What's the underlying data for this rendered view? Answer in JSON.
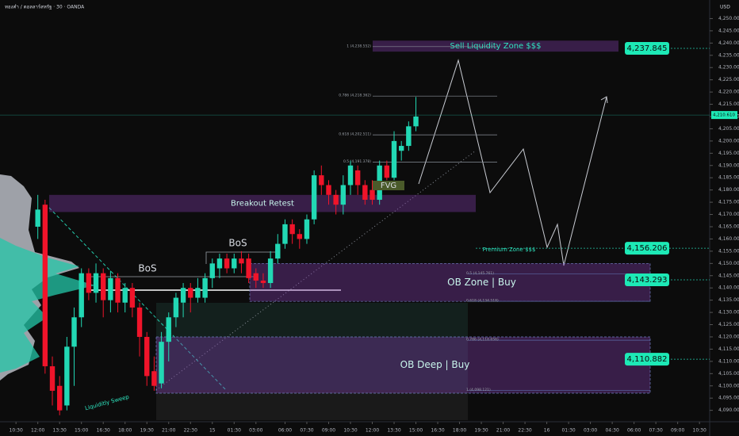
{
  "header": {
    "symbol": "ทองคำ / ดอลลาร์สหรัฐ · 30 · OANDA",
    "currency": "USD"
  },
  "chart_data": {
    "type": "candlestick",
    "up_color": "#22d8b4",
    "down_color": "#f0142a",
    "grid": false,
    "ylim": [
      4086,
      4255
    ],
    "yticks": [
      {
        "value": 4090,
        "label": "4,090.000"
      },
      {
        "value": 4095,
        "label": "4,095.000"
      },
      {
        "value": 4100,
        "label": "4,100.000"
      },
      {
        "value": 4105,
        "label": "4,105.000"
      },
      {
        "value": 4110,
        "label": "4,110.000"
      },
      {
        "value": 4115,
        "label": "4,115.000"
      },
      {
        "value": 4120,
        "label": "4,120.000"
      },
      {
        "value": 4125,
        "label": "4,125.000"
      },
      {
        "value": 4130,
        "label": "4,130.000"
      },
      {
        "value": 4135,
        "label": "4,135.000"
      },
      {
        "value": 4140,
        "label": "4,140.000"
      },
      {
        "value": 4145,
        "label": "4,145.000"
      },
      {
        "value": 4150,
        "label": "4,150.000"
      },
      {
        "value": 4155,
        "label": "4,155.000"
      },
      {
        "value": 4160,
        "label": "4,160.000"
      },
      {
        "value": 4165,
        "label": "4,165.000"
      },
      {
        "value": 4170,
        "label": "4,170.000"
      },
      {
        "value": 4175,
        "label": "4,175.000"
      },
      {
        "value": 4180,
        "label": "4,180.000"
      },
      {
        "value": 4185,
        "label": "4,185.000"
      },
      {
        "value": 4190,
        "label": "4,190.000"
      },
      {
        "value": 4195,
        "label": "4,195.000"
      },
      {
        "value": 4200,
        "label": "4,200.000"
      },
      {
        "value": 4205,
        "label": "4,205.000"
      },
      {
        "value": 4210,
        "label": "4,210.000"
      },
      {
        "value": 4215,
        "label": "4,215.000"
      },
      {
        "value": 4220,
        "label": "4,220.000"
      },
      {
        "value": 4225,
        "label": "4,225.000"
      },
      {
        "value": 4230,
        "label": "4,230.000"
      },
      {
        "value": 4235,
        "label": "4,235.000"
      },
      {
        "value": 4240,
        "label": "4,240.000"
      },
      {
        "value": 4245,
        "label": "4,245.000"
      },
      {
        "value": 4250,
        "label": "4,250.000"
      }
    ],
    "xlim": [
      -5.2,
      92.4
    ],
    "xticks": [
      {
        "value": -3,
        "label": "10:30"
      },
      {
        "value": 0,
        "label": "12:00"
      },
      {
        "value": 3,
        "label": "13:30"
      },
      {
        "value": 6,
        "label": "15:00"
      },
      {
        "value": 9,
        "label": "16:30"
      },
      {
        "value": 12,
        "label": "18:00"
      },
      {
        "value": 15,
        "label": "19:30"
      },
      {
        "value": 18,
        "label": "21:00"
      },
      {
        "value": 21,
        "label": "22:30"
      },
      {
        "value": 24,
        "label": "15"
      },
      {
        "value": 27,
        "label": "01:30"
      },
      {
        "value": 30,
        "label": "03:00"
      },
      {
        "value": 34,
        "label": "06:00"
      },
      {
        "value": 37,
        "label": "07:30"
      },
      {
        "value": 40,
        "label": "09:00"
      },
      {
        "value": 43,
        "label": "10:30"
      },
      {
        "value": 46,
        "label": "12:00"
      },
      {
        "value": 49,
        "label": "13:30"
      },
      {
        "value": 52,
        "label": "15:00"
      },
      {
        "value": 55,
        "label": "16:30"
      },
      {
        "value": 58,
        "label": "18:00"
      },
      {
        "value": 61,
        "label": "19:30"
      },
      {
        "value": 64,
        "label": "21:00"
      },
      {
        "value": 67,
        "label": "22:30"
      },
      {
        "value": 70,
        "label": "16"
      },
      {
        "value": 73,
        "label": "01:30"
      },
      {
        "value": 76,
        "label": "03:00"
      },
      {
        "value": 79,
        "label": "04:30"
      },
      {
        "value": 82,
        "label": "06:00"
      },
      {
        "value": 85,
        "label": "07:30"
      },
      {
        "value": 88,
        "label": "09:00"
      },
      {
        "value": 91,
        "label": "10:30"
      }
    ],
    "open": [
      4165,
      4174,
      4108,
      4100,
      4092,
      4116,
      4128,
      4146,
      4138,
      4146,
      4135,
      4144,
      4134,
      4140,
      4132,
      4120,
      4106,
      4101,
      4118,
      4128,
      4134,
      4140,
      4136,
      4136,
      4144,
      4148,
      4152,
      4148,
      4152,
      4152,
      4146,
      4143,
      4142,
      4152,
      4158,
      4166,
      4162,
      4160,
      4168,
      4186,
      4182,
      4178,
      4174,
      4182,
      4188,
      4182,
      4180,
      4176,
      4190,
      4185,
      4196,
      4198,
      4206
    ],
    "high": [
      4178,
      4176,
      4112,
      4104,
      4120,
      4132,
      4148,
      4148,
      4150,
      4148,
      4147,
      4146,
      4142,
      4142,
      4134,
      4122,
      4112,
      4122,
      4130,
      4138,
      4142,
      4142,
      4144,
      4146,
      4152,
      4154,
      4154,
      4154,
      4155,
      4154,
      4148,
      4146,
      4155,
      4162,
      4168,
      4168,
      4164,
      4170,
      4188,
      4190,
      4184,
      4180,
      4186,
      4192,
      4190,
      4184,
      4184,
      4192,
      4192,
      4204,
      4200,
      4208,
      4218
    ],
    "low": [
      4160,
      4105,
      4092,
      4088,
      4090,
      4100,
      4124,
      4135,
      4134,
      4128,
      4130,
      4130,
      4130,
      4128,
      4112,
      4100,
      4098,
      4099,
      4110,
      4124,
      4128,
      4130,
      4134,
      4134,
      4140,
      4144,
      4146,
      4146,
      4146,
      4142,
      4140,
      4140,
      4140,
      4150,
      4156,
      4158,
      4156,
      4158,
      4166,
      4178,
      4174,
      4170,
      4170,
      4178,
      4178,
      4174,
      4174,
      4174,
      4184,
      4184,
      4192,
      4196,
      4204
    ],
    "close": [
      4172,
      4108,
      4098,
      4090,
      4116,
      4128,
      4146,
      4138,
      4146,
      4135,
      4144,
      4134,
      4140,
      4132,
      4120,
      4104,
      4100,
      4118,
      4128,
      4136,
      4140,
      4136,
      4140,
      4144,
      4150,
      4152,
      4148,
      4152,
      4150,
      4144,
      4143,
      4142,
      4152,
      4158,
      4166,
      4162,
      4160,
      4168,
      4186,
      4182,
      4178,
      4174,
      4182,
      4190,
      4182,
      4176,
      4176,
      4190,
      4185,
      4200,
      4198,
      4206,
      4210
    ],
    "zones": [
      {
        "label": "Sell Liquidity Zone $$$",
        "top": 4241,
        "bottom": 4236.5
      },
      {
        "label": "Breakout Retest",
        "top": 4178,
        "bottom": 4171
      },
      {
        "label": "OB Zone | Buy",
        "top": 4150,
        "bottom": 4134.5
      },
      {
        "label": "OB Deep | Buy",
        "top": 4120,
        "bottom": 4097
      }
    ],
    "fib_levels": [
      {
        "value": 4238.552,
        "label": "1 (4,238.552)"
      },
      {
        "value": 4218.362,
        "label": "0.786 (4,218.362)"
      },
      {
        "value": 4202.511,
        "label": "0.618 (4,202.511)"
      },
      {
        "value": 4191.378,
        "label": "0.5 (4,191.378)"
      },
      {
        "value": 4145.761,
        "label": "0.5 (4,145.761)"
      },
      {
        "value": 4134.518,
        "label": "0.618 (4,134.518)"
      },
      {
        "value": 4118.656,
        "label": "0.786 (4,118.656)"
      },
      {
        "value": 4098.121,
        "label": "1 (4,098.121)"
      }
    ],
    "price_tags": [
      {
        "value": 4237.845,
        "label": "4,237.845"
      },
      {
        "value": 4156.206,
        "label": "4,156.206"
      },
      {
        "value": 4143.293,
        "label": "4,143.293"
      },
      {
        "value": 4110.882,
        "label": "4,110.882"
      }
    ],
    "current_price": {
      "value": 4210.61,
      "label": "4,210.610"
    },
    "annotations": [
      "BoS",
      "BoS",
      "FVG",
      "Premium Zone $$$",
      "Liquiditly Sweep"
    ]
  }
}
